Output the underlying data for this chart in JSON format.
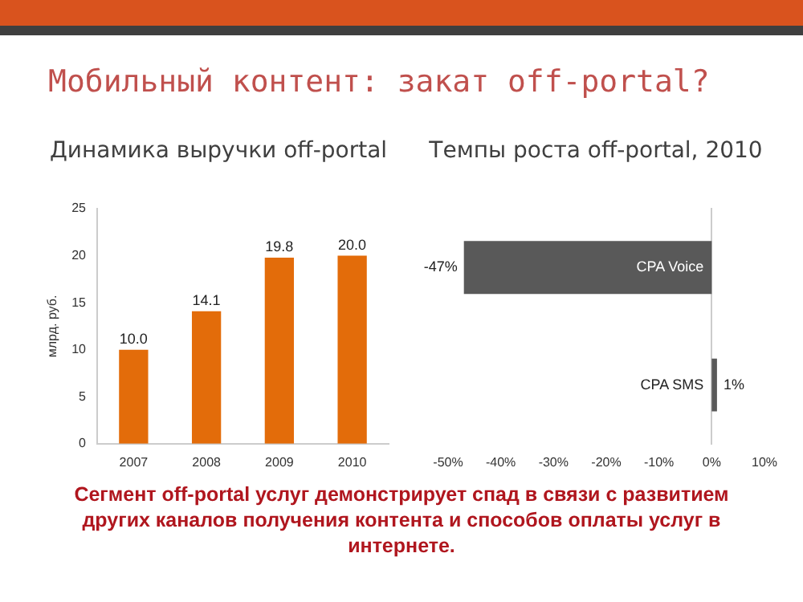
{
  "chart_data": [
    {
      "type": "other",
      "title": "Мобильный контент: закат off-portal?",
      "annotations": [
        "Сегмент off-portal услуг демонстрирует спад в связи с развитием других каналов получения контента и способов оплаты услуг в интернете."
      ]
    },
    {
      "type": "bar",
      "title": "Динамика выручки off-portal",
      "ylabel": "млрд. руб.",
      "categories": [
        "2007",
        "2008",
        "2009",
        "2010"
      ],
      "values": [
        10.0,
        14.1,
        19.8,
        20.0
      ],
      "value_labels": [
        "10.0",
        "14.1",
        "19.8",
        "20.0"
      ],
      "color": "#e36c0a",
      "ylim": [
        0,
        25
      ],
      "yticks": [
        0,
        5,
        10,
        15,
        20,
        25
      ],
      "grid": false,
      "legend": false
    },
    {
      "type": "bar",
      "orientation": "horizontal",
      "title": "Темпы роста off-portal, 2010",
      "categories": [
        "CPA Voice",
        "CPA SMS"
      ],
      "values": [
        -47,
        1
      ],
      "value_labels": [
        "-47%",
        "1%"
      ],
      "color": "#595959",
      "xlim": [
        -50,
        10
      ],
      "xticks": [
        {
          "value": -50,
          "label": "-50%"
        },
        {
          "value": -40,
          "label": "-40%"
        },
        {
          "value": -30,
          "label": "-30%"
        },
        {
          "value": -20,
          "label": "-20%"
        },
        {
          "value": -10,
          "label": "-10%"
        },
        {
          "value": 0,
          "label": "0%"
        },
        {
          "value": 10,
          "label": "10%"
        }
      ],
      "grid": false,
      "legend": false
    }
  ]
}
